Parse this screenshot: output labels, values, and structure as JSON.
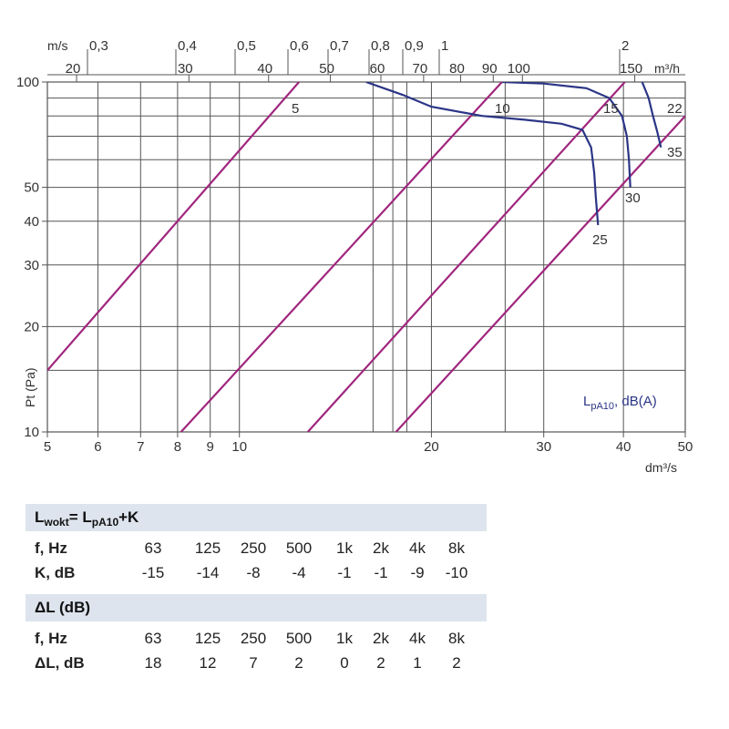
{
  "chart_data": {
    "type": "line",
    "x_axis": {
      "label": "dm³/s",
      "scale": "log",
      "range": [
        5,
        50
      ],
      "ticks": [
        "5",
        "6",
        "7",
        "8",
        "9",
        "10",
        "20",
        "30",
        "40",
        "50"
      ]
    },
    "top_axis_velocity": {
      "label": "m/s",
      "ticks": [
        "0,3",
        "0,4",
        "0,5",
        "0,6",
        "0,7",
        "0,8",
        "0,9",
        "1",
        "2"
      ]
    },
    "top_axis_flow": {
      "label": "m³/h",
      "ticks": [
        "20",
        "30",
        "40",
        "50",
        "60",
        "70",
        "80",
        "90",
        "100",
        "150"
      ]
    },
    "y_axis": {
      "label": "Pt (Pa)",
      "scale": "log",
      "range": [
        10,
        100
      ],
      "ticks": [
        "10",
        "20",
        "30",
        "40",
        "50",
        "100"
      ]
    },
    "velocity_lines": [
      {
        "name": "5",
        "points": [
          [
            5,
            15
          ],
          [
            12.4,
            100
          ]
        ]
      },
      {
        "name": "10",
        "points": [
          [
            8.1,
            10
          ],
          [
            25.8,
            100
          ]
        ]
      },
      {
        "name": "15",
        "points": [
          [
            12.8,
            10
          ],
          [
            40.2,
            100
          ]
        ]
      },
      {
        "name": "22",
        "points": [
          [
            17.6,
            10
          ],
          [
            50,
            80
          ]
        ]
      }
    ],
    "fan_curves": [
      {
        "name": "25",
        "points": [
          [
            15.8,
            100
          ],
          [
            18,
            92
          ],
          [
            20,
            85
          ],
          [
            24,
            80
          ],
          [
            28,
            78
          ],
          [
            32,
            76
          ],
          [
            34.5,
            73
          ],
          [
            35.6,
            65
          ],
          [
            36,
            55
          ],
          [
            36.2,
            47
          ],
          [
            36.5,
            39
          ]
        ]
      },
      {
        "name": "30",
        "points": [
          [
            25.8,
            100
          ],
          [
            30,
            99
          ],
          [
            35,
            96
          ],
          [
            38,
            90
          ],
          [
            39.8,
            80
          ],
          [
            40.5,
            70
          ],
          [
            40.8,
            60
          ],
          [
            41,
            50
          ]
        ]
      },
      {
        "name": "35",
        "points": [
          [
            42.8,
            100
          ],
          [
            43.8,
            90
          ],
          [
            44.5,
            80
          ],
          [
            45.2,
            72
          ],
          [
            45.8,
            65
          ]
        ]
      }
    ],
    "series_label": "LpA10, dB(A)"
  },
  "correction_table": {
    "title": "Lwokt= LpA10+K",
    "title_main": "L",
    "title_sub1": "wokt",
    "title_mid": "= L",
    "title_sub2": "pA10",
    "title_end": "+K",
    "row1_label": "f, Hz",
    "row1": [
      "63",
      "125",
      "250",
      "500",
      "1k",
      "2k",
      "4k",
      "8k"
    ],
    "row2_label": "K, dB",
    "row2": [
      "-15",
      "-14",
      "-8",
      "-4",
      "-1",
      "-1",
      "-9",
      "-10"
    ]
  },
  "delta_table": {
    "title": "ΔL (dB)",
    "row1_label": "f, Hz",
    "row1": [
      "63",
      "125",
      "250",
      "500",
      "1k",
      "2k",
      "4k",
      "8k"
    ],
    "row2_label": "ΔL, dB",
    "row2": [
      "18",
      "12",
      "7",
      "2",
      "0",
      "2",
      "1",
      "2"
    ]
  },
  "colors": {
    "velocity": "#a0267e",
    "fan": "#2b3586",
    "grid": "#555555",
    "header_bg": "#dde4ed"
  }
}
